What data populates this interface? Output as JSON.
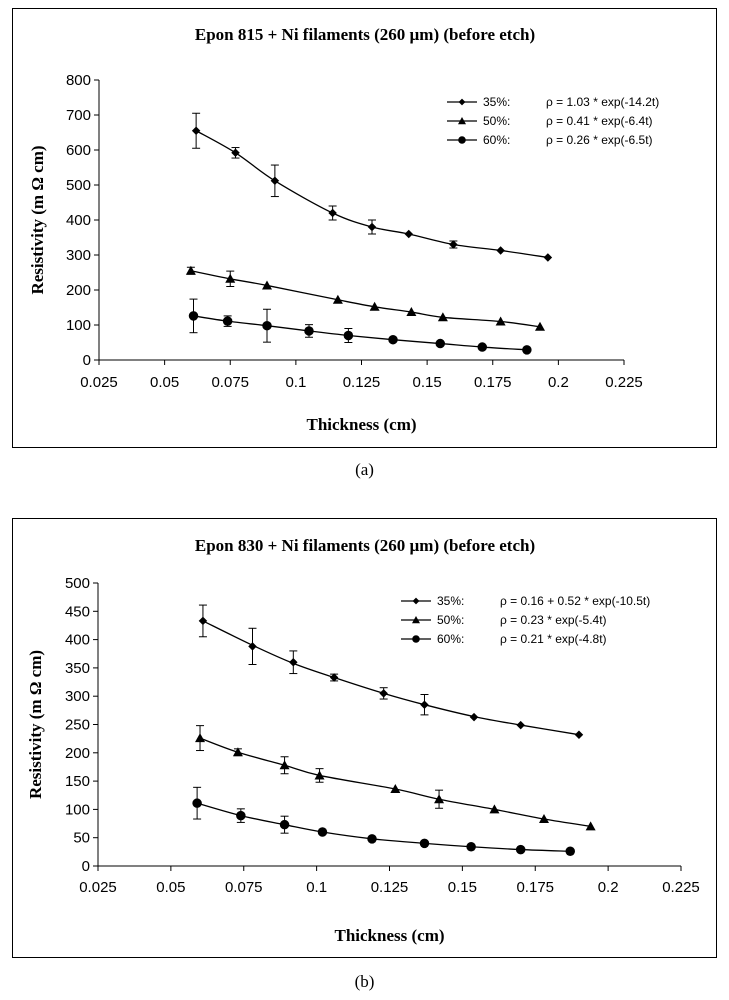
{
  "captions": {
    "a": "(a)",
    "b": "(b)"
  },
  "colors": {
    "ink": "#000000",
    "background": "#ffffff"
  },
  "chart_data": [
    {
      "type": "line",
      "title": "Epon 815 + Ni filaments (260 µm) (before etch)",
      "xlabel": "Thickness (cm)",
      "ylabel": "Resistivity (m Ω cm)",
      "xlim": [
        0.025,
        0.225
      ],
      "ylim": [
        0,
        800
      ],
      "xticks": [
        "0.025",
        "0.05",
        "0.075",
        "0.1",
        "0.125",
        "0.15",
        "0.175",
        "0.2",
        "0.225"
      ],
      "yticks": [
        "0",
        "100",
        "200",
        "300",
        "400",
        "500",
        "600",
        "700",
        "800"
      ],
      "legend_position": "top-right",
      "series": [
        {
          "name": "35%:",
          "marker": "diamond",
          "fit": "ρ = 1.03 * exp(-14.2t)",
          "points": [
            [
              0.062,
              655,
              50
            ],
            [
              0.077,
              592,
              15
            ],
            [
              0.092,
              512,
              45
            ],
            [
              0.114,
              420,
              20
            ],
            [
              0.129,
              380,
              20
            ],
            [
              0.143,
              360,
              0
            ],
            [
              0.16,
              330,
              10
            ],
            [
              0.178,
              313,
              0
            ],
            [
              0.196,
              293,
              0
            ]
          ],
          "curve": [
            [
              0.062,
              655
            ],
            [
              0.077,
              592
            ],
            [
              0.092,
              512
            ],
            [
              0.114,
              420
            ],
            [
              0.129,
              380
            ],
            [
              0.143,
              360
            ],
            [
              0.16,
              330
            ],
            [
              0.178,
              313
            ],
            [
              0.196,
              293
            ]
          ]
        },
        {
          "name": "50%:",
          "marker": "triangle",
          "fit": "ρ = 0.41 * exp(-6.4t)",
          "points": [
            [
              0.06,
              255,
              10
            ],
            [
              0.075,
              232,
              22
            ],
            [
              0.089,
              213,
              0
            ],
            [
              0.116,
              172,
              0
            ],
            [
              0.13,
              152,
              0
            ],
            [
              0.144,
              137,
              0
            ],
            [
              0.156,
              122,
              0
            ],
            [
              0.178,
              110,
              0
            ],
            [
              0.193,
              95,
              0
            ]
          ],
          "curve": [
            [
              0.06,
              255
            ],
            [
              0.075,
              232
            ],
            [
              0.089,
              213
            ],
            [
              0.116,
              172
            ],
            [
              0.13,
              152
            ],
            [
              0.144,
              137
            ],
            [
              0.156,
              122
            ],
            [
              0.178,
              110
            ],
            [
              0.193,
              95
            ]
          ]
        },
        {
          "name": "60%:",
          "marker": "circle",
          "fit": "ρ = 0.26 * exp(-6.5t)",
          "points": [
            [
              0.061,
              126,
              48
            ],
            [
              0.074,
              111,
              15
            ],
            [
              0.089,
              98,
              47
            ],
            [
              0.105,
              83,
              18
            ],
            [
              0.12,
              70,
              20
            ],
            [
              0.137,
              58,
              0
            ],
            [
              0.155,
              47,
              0
            ],
            [
              0.171,
              37,
              0
            ],
            [
              0.188,
              29,
              0
            ]
          ],
          "curve": [
            [
              0.061,
              126
            ],
            [
              0.074,
              111
            ],
            [
              0.089,
              98
            ],
            [
              0.105,
              83
            ],
            [
              0.12,
              70
            ],
            [
              0.137,
              58
            ],
            [
              0.155,
              47
            ],
            [
              0.171,
              37
            ],
            [
              0.188,
              29
            ]
          ]
        }
      ]
    },
    {
      "type": "line",
      "title": "Epon 830 + Ni filaments (260 µm) (before etch)",
      "xlabel": "Thickness (cm)",
      "ylabel": "Resistivity (m Ω cm)",
      "xlim": [
        0.025,
        0.225
      ],
      "ylim": [
        0,
        500
      ],
      "xticks": [
        "0.025",
        "0.05",
        "0.075",
        "0.1",
        "0.125",
        "0.15",
        "0.175",
        "0.2",
        "0.225"
      ],
      "yticks": [
        "0",
        "50",
        "100",
        "150",
        "200",
        "250",
        "300",
        "350",
        "400",
        "450",
        "500"
      ],
      "legend_position": "top-right",
      "series": [
        {
          "name": "35%:",
          "marker": "diamond",
          "fit": "ρ = 0.16 + 0.52 * exp(-10.5t)",
          "points": [
            [
              0.061,
              433,
              28
            ],
            [
              0.078,
              388,
              32
            ],
            [
              0.092,
              360,
              20
            ],
            [
              0.106,
              333,
              6
            ],
            [
              0.123,
              305,
              10
            ],
            [
              0.137,
              285,
              18
            ],
            [
              0.154,
              263,
              0
            ],
            [
              0.17,
              249,
              0
            ],
            [
              0.19,
              232,
              0
            ]
          ],
          "curve": [
            [
              0.061,
              433
            ],
            [
              0.078,
              390
            ],
            [
              0.092,
              358
            ],
            [
              0.106,
              333
            ],
            [
              0.123,
              305
            ],
            [
              0.137,
              285
            ],
            [
              0.154,
              264
            ],
            [
              0.17,
              249
            ],
            [
              0.19,
              232
            ]
          ]
        },
        {
          "name": "50%:",
          "marker": "triangle",
          "fit": "ρ =           0.23 * exp(-5.4t)",
          "points": [
            [
              0.06,
              226,
              22
            ],
            [
              0.073,
              201,
              6
            ],
            [
              0.089,
              178,
              15
            ],
            [
              0.101,
              160,
              12
            ],
            [
              0.127,
              136,
              0
            ],
            [
              0.142,
              118,
              16
            ],
            [
              0.161,
              100,
              0
            ],
            [
              0.178,
              83,
              0
            ],
            [
              0.194,
              70,
              0
            ]
          ],
          "curve": [
            [
              0.06,
              226
            ],
            [
              0.073,
              201
            ],
            [
              0.089,
              178
            ],
            [
              0.101,
              160
            ],
            [
              0.127,
              136
            ],
            [
              0.142,
              118
            ],
            [
              0.161,
              100
            ],
            [
              0.178,
              83
            ],
            [
              0.194,
              70
            ]
          ]
        },
        {
          "name": "60%:",
          "marker": "circle",
          "fit": "ρ =           0.21 * exp(-4.8t)",
          "points": [
            [
              0.059,
              111,
              28
            ],
            [
              0.074,
              89,
              12
            ],
            [
              0.089,
              73,
              15
            ],
            [
              0.102,
              60,
              0
            ],
            [
              0.119,
              48,
              0
            ],
            [
              0.137,
              40,
              0
            ],
            [
              0.153,
              34,
              0
            ],
            [
              0.17,
              29,
              0
            ],
            [
              0.187,
              26,
              0
            ]
          ],
          "curve": [
            [
              0.059,
              111
            ],
            [
              0.074,
              89
            ],
            [
              0.089,
              73
            ],
            [
              0.102,
              60
            ],
            [
              0.119,
              48
            ],
            [
              0.137,
              40
            ],
            [
              0.153,
              34
            ],
            [
              0.17,
              29
            ],
            [
              0.187,
              26
            ]
          ]
        }
      ]
    }
  ]
}
